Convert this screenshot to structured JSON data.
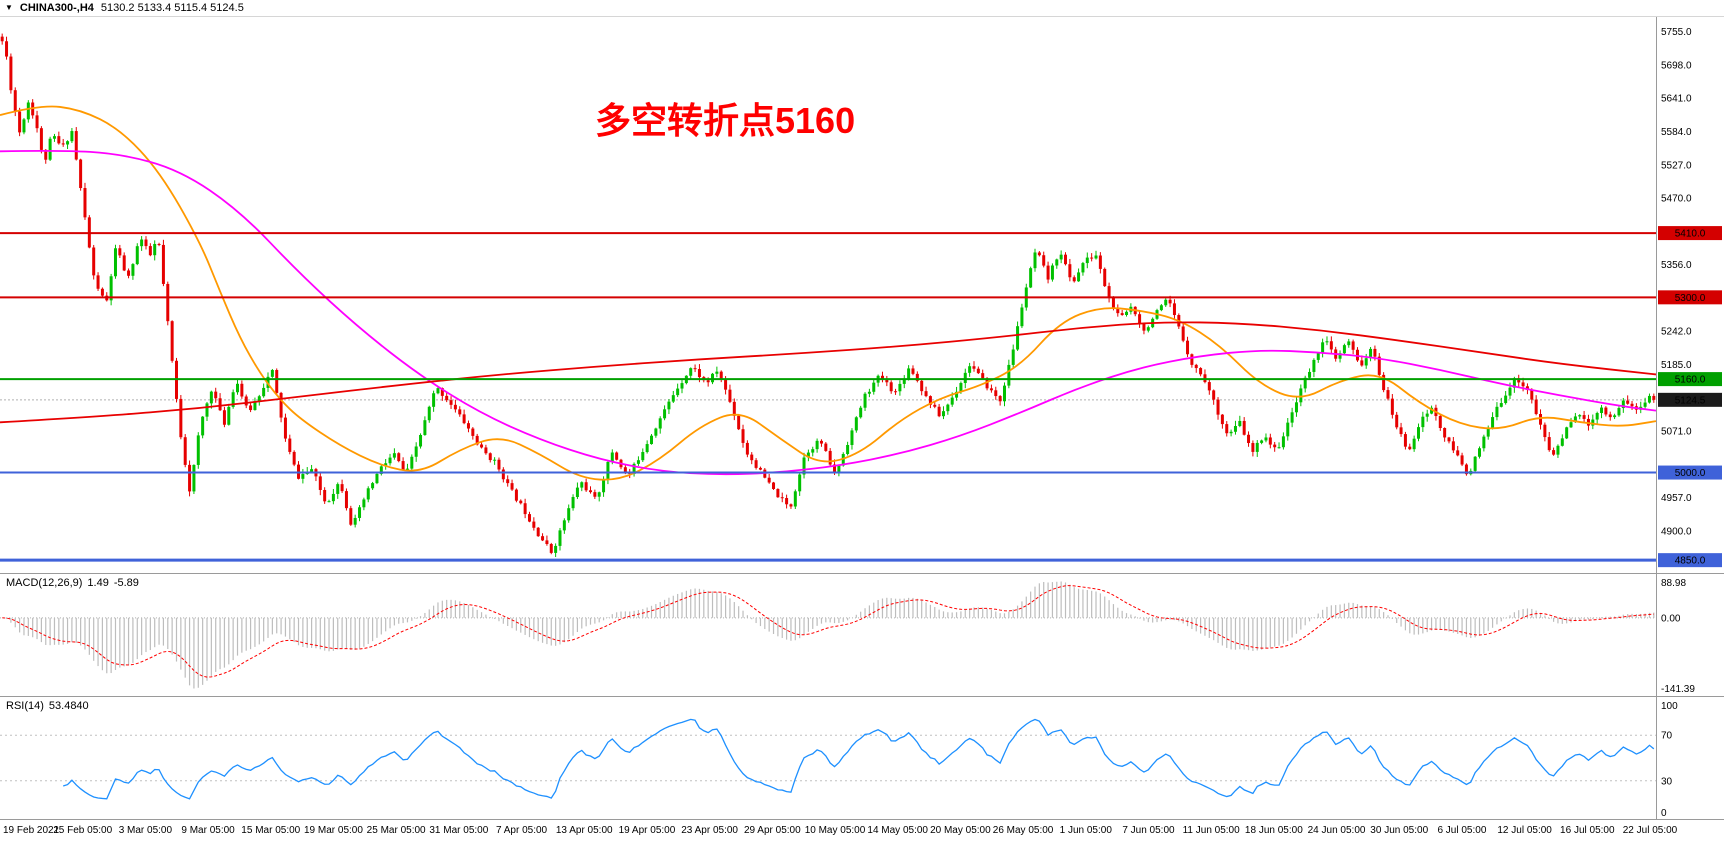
{
  "header": {
    "dropdown_glyph": "▼",
    "symbol_timeframe": "CHINA300-,H4",
    "ohlc": "5130.2 5133.4 5115.4 5124.5"
  },
  "annotation": {
    "text": "多空转折点5160",
    "color": "#ff0000"
  },
  "chart_data": {
    "type": "candlestick",
    "title": "CHINA300-,H4",
    "symbol": "CHINA300-",
    "timeframe": "H4",
    "background": "#ffffff",
    "y_axis": {
      "range": [
        4828,
        5780
      ],
      "ticks": [
        5755,
        5698,
        5641,
        5584,
        5527,
        5470,
        5413,
        5356,
        5299,
        5242,
        5185,
        5128,
        5071,
        5014,
        4957,
        4900,
        4843
      ]
    },
    "x_axis": {
      "labels": [
        "19 Feb 2021",
        "25 Feb 05:00",
        "3 Mar 05:00",
        "9 Mar 05:00",
        "15 Mar 05:00",
        "19 Mar 05:00",
        "25 Mar 05:00",
        "31 Mar 05:00",
        "7 Apr 05:00",
        "13 Apr 05:00",
        "19 Apr 05:00",
        "23 Apr 05:00",
        "29 Apr 05:00",
        "10 May 05:00",
        "14 May 05:00",
        "20 May 05:00",
        "26 May 05:00",
        "1 Jun 05:00",
        "7 Jun 05:00",
        "11 Jun 05:00",
        "18 Jun 05:00",
        "24 Jun 05:00",
        "30 Jun 05:00",
        "6 Jul 05:00",
        "12 Jul 05:00",
        "16 Jul 05:00",
        "22 Jul 05:00"
      ]
    },
    "levels": [
      {
        "price": 5410,
        "label": "5410.0",
        "color": "#d40000",
        "width": 2
      },
      {
        "price": 5300,
        "label": "5300.0",
        "color": "#d40000",
        "width": 2
      },
      {
        "price": 5160,
        "label": "5160.0",
        "color": "#00a000",
        "width": 2
      },
      {
        "price": 5000,
        "label": "5000.0",
        "color": "#3f62d9",
        "width": 2
      },
      {
        "price": 4850,
        "label": "4850.0",
        "color": "#3f62d9",
        "width": 3
      }
    ],
    "current_price": {
      "value": 5124.5,
      "label": "5124.5",
      "line_color": "#b0b0b0",
      "badge_color": "#1b1b1b"
    },
    "last_close": 5124.5,
    "candles": {
      "count": 380,
      "seed": 11,
      "up_color": "#00c000",
      "down_color": "#e60000",
      "body_width": 3
    },
    "price_swings": [
      [
        0,
        5750
      ],
      [
        6,
        5718
      ],
      [
        12,
        5645
      ],
      [
        20,
        5580
      ],
      [
        28,
        5636
      ],
      [
        36,
        5600
      ],
      [
        44,
        5526
      ],
      [
        52,
        5580
      ],
      [
        62,
        5555
      ],
      [
        72,
        5585
      ],
      [
        82,
        5470
      ],
      [
        94,
        5332
      ],
      [
        106,
        5286
      ],
      [
        116,
        5386
      ],
      [
        128,
        5330
      ],
      [
        140,
        5404
      ],
      [
        150,
        5370
      ],
      [
        158,
        5404
      ],
      [
        168,
        5252
      ],
      [
        180,
        5072
      ],
      [
        190,
        4966
      ],
      [
        200,
        5080
      ],
      [
        212,
        5146
      ],
      [
        224,
        5082
      ],
      [
        236,
        5160
      ],
      [
        248,
        5102
      ],
      [
        260,
        5136
      ],
      [
        272,
        5176
      ],
      [
        286,
        5052
      ],
      [
        298,
        4992
      ],
      [
        312,
        5006
      ],
      [
        326,
        4946
      ],
      [
        340,
        4986
      ],
      [
        352,
        4906
      ],
      [
        366,
        4962
      ],
      [
        380,
        5006
      ],
      [
        394,
        5032
      ],
      [
        406,
        4996
      ],
      [
        420,
        5062
      ],
      [
        436,
        5146
      ],
      [
        450,
        5120
      ],
      [
        466,
        5082
      ],
      [
        480,
        5042
      ],
      [
        496,
        5016
      ],
      [
        510,
        4972
      ],
      [
        524,
        4936
      ],
      [
        538,
        4896
      ],
      [
        552,
        4862
      ],
      [
        566,
        4926
      ],
      [
        580,
        4986
      ],
      [
        596,
        4952
      ],
      [
        612,
        5036
      ],
      [
        628,
        4992
      ],
      [
        644,
        5042
      ],
      [
        660,
        5092
      ],
      [
        676,
        5142
      ],
      [
        692,
        5182
      ],
      [
        706,
        5152
      ],
      [
        718,
        5176
      ],
      [
        732,
        5112
      ],
      [
        746,
        5036
      ],
      [
        760,
        5002
      ],
      [
        775,
        4966
      ],
      [
        790,
        4938
      ],
      [
        805,
        5032
      ],
      [
        820,
        5056
      ],
      [
        835,
        4996
      ],
      [
        850,
        5062
      ],
      [
        865,
        5132
      ],
      [
        880,
        5166
      ],
      [
        895,
        5136
      ],
      [
        910,
        5182
      ],
      [
        925,
        5132
      ],
      [
        940,
        5096
      ],
      [
        955,
        5136
      ],
      [
        970,
        5186
      ],
      [
        985,
        5152
      ],
      [
        1000,
        5122
      ],
      [
        1012,
        5202
      ],
      [
        1024,
        5302
      ],
      [
        1036,
        5382
      ],
      [
        1048,
        5332
      ],
      [
        1060,
        5382
      ],
      [
        1072,
        5322
      ],
      [
        1084,
        5362
      ],
      [
        1096,
        5372
      ],
      [
        1108,
        5302
      ],
      [
        1120,
        5262
      ],
      [
        1132,
        5286
      ],
      [
        1144,
        5242
      ],
      [
        1156,
        5272
      ],
      [
        1168,
        5296
      ],
      [
        1180,
        5242
      ],
      [
        1192,
        5186
      ],
      [
        1204,
        5162
      ],
      [
        1216,
        5112
      ],
      [
        1228,
        5062
      ],
      [
        1240,
        5086
      ],
      [
        1252,
        5032
      ],
      [
        1264,
        5066
      ],
      [
        1276,
        5036
      ],
      [
        1288,
        5082
      ],
      [
        1300,
        5142
      ],
      [
        1312,
        5182
      ],
      [
        1324,
        5232
      ],
      [
        1336,
        5192
      ],
      [
        1348,
        5226
      ],
      [
        1360,
        5182
      ],
      [
        1372,
        5212
      ],
      [
        1384,
        5142
      ],
      [
        1396,
        5082
      ],
      [
        1408,
        5036
      ],
      [
        1420,
        5086
      ],
      [
        1432,
        5112
      ],
      [
        1444,
        5062
      ],
      [
        1456,
        5032
      ],
      [
        1468,
        4996
      ],
      [
        1480,
        5042
      ],
      [
        1492,
        5092
      ],
      [
        1504,
        5132
      ],
      [
        1516,
        5162
      ],
      [
        1528,
        5142
      ],
      [
        1540,
        5082
      ],
      [
        1552,
        5026
      ],
      [
        1564,
        5066
      ],
      [
        1576,
        5102
      ],
      [
        1588,
        5082
      ],
      [
        1600,
        5112
      ],
      [
        1612,
        5092
      ],
      [
        1624,
        5126
      ],
      [
        1636,
        5106
      ],
      [
        1648,
        5128
      ],
      [
        1656,
        5124.5
      ]
    ],
    "moving_averages": [
      {
        "name": "ma-fast",
        "color": "#ff9900",
        "width": 1.8,
        "points": [
          [
            0,
            5612
          ],
          [
            40,
            5630
          ],
          [
            80,
            5622
          ],
          [
            120,
            5588
          ],
          [
            160,
            5515
          ],
          [
            200,
            5395
          ],
          [
            220,
            5310
          ],
          [
            240,
            5230
          ],
          [
            260,
            5170
          ],
          [
            280,
            5125
          ],
          [
            300,
            5092
          ],
          [
            340,
            5046
          ],
          [
            380,
            5012
          ],
          [
            420,
            4998
          ],
          [
            460,
            5040
          ],
          [
            500,
            5064
          ],
          [
            540,
            5032
          ],
          [
            580,
            4990
          ],
          [
            620,
            4986
          ],
          [
            660,
            5022
          ],
          [
            700,
            5080
          ],
          [
            740,
            5108
          ],
          [
            780,
            5058
          ],
          [
            820,
            5012
          ],
          [
            860,
            5032
          ],
          [
            900,
            5090
          ],
          [
            940,
            5128
          ],
          [
            980,
            5148
          ],
          [
            1020,
            5182
          ],
          [
            1060,
            5258
          ],
          [
            1100,
            5284
          ],
          [
            1140,
            5278
          ],
          [
            1180,
            5262
          ],
          [
            1220,
            5218
          ],
          [
            1260,
            5150
          ],
          [
            1300,
            5122
          ],
          [
            1340,
            5158
          ],
          [
            1380,
            5172
          ],
          [
            1420,
            5118
          ],
          [
            1460,
            5082
          ],
          [
            1500,
            5072
          ],
          [
            1540,
            5098
          ],
          [
            1580,
            5086
          ],
          [
            1620,
            5078
          ],
          [
            1656,
            5088
          ]
        ]
      },
      {
        "name": "ma-medium",
        "color": "#ff00ff",
        "width": 1.8,
        "points": [
          [
            0,
            5550
          ],
          [
            60,
            5552
          ],
          [
            120,
            5546
          ],
          [
            180,
            5518
          ],
          [
            240,
            5448
          ],
          [
            300,
            5340
          ],
          [
            360,
            5246
          ],
          [
            420,
            5166
          ],
          [
            480,
            5102
          ],
          [
            540,
            5056
          ],
          [
            600,
            5022
          ],
          [
            660,
            5002
          ],
          [
            720,
            4996
          ],
          [
            780,
            5000
          ],
          [
            840,
            5012
          ],
          [
            900,
            5032
          ],
          [
            960,
            5062
          ],
          [
            1020,
            5102
          ],
          [
            1080,
            5146
          ],
          [
            1140,
            5180
          ],
          [
            1200,
            5200
          ],
          [
            1260,
            5210
          ],
          [
            1320,
            5206
          ],
          [
            1380,
            5196
          ],
          [
            1440,
            5176
          ],
          [
            1500,
            5152
          ],
          [
            1560,
            5132
          ],
          [
            1620,
            5114
          ],
          [
            1656,
            5106
          ]
        ]
      },
      {
        "name": "ma-slow",
        "color": "#e80000",
        "width": 1.8,
        "points": [
          [
            0,
            5086
          ],
          [
            100,
            5096
          ],
          [
            200,
            5110
          ],
          [
            300,
            5130
          ],
          [
            400,
            5150
          ],
          [
            500,
            5168
          ],
          [
            600,
            5182
          ],
          [
            700,
            5194
          ],
          [
            800,
            5204
          ],
          [
            900,
            5216
          ],
          [
            1000,
            5232
          ],
          [
            1080,
            5248
          ],
          [
            1160,
            5258
          ],
          [
            1240,
            5256
          ],
          [
            1320,
            5244
          ],
          [
            1400,
            5226
          ],
          [
            1480,
            5206
          ],
          [
            1560,
            5186
          ],
          [
            1656,
            5168
          ]
        ]
      }
    ],
    "indicators": {
      "macd": {
        "label": "MACD(12,26,9)",
        "value_main": "1.49",
        "value_signal": "-5.89",
        "params": [
          12,
          26,
          9
        ],
        "axis_labels": [
          "88.98",
          "0.00",
          "-141.39"
        ],
        "histogram_color": "#bdbdbd",
        "signal_color": "#ff0000"
      },
      "rsi": {
        "label": "RSI(14)",
        "value_text": "53.4840",
        "period": 14,
        "levels": [
          70,
          30
        ],
        "axis_labels": [
          "100",
          "70",
          "30",
          "0"
        ],
        "line_color": "#1e90ff"
      }
    }
  }
}
